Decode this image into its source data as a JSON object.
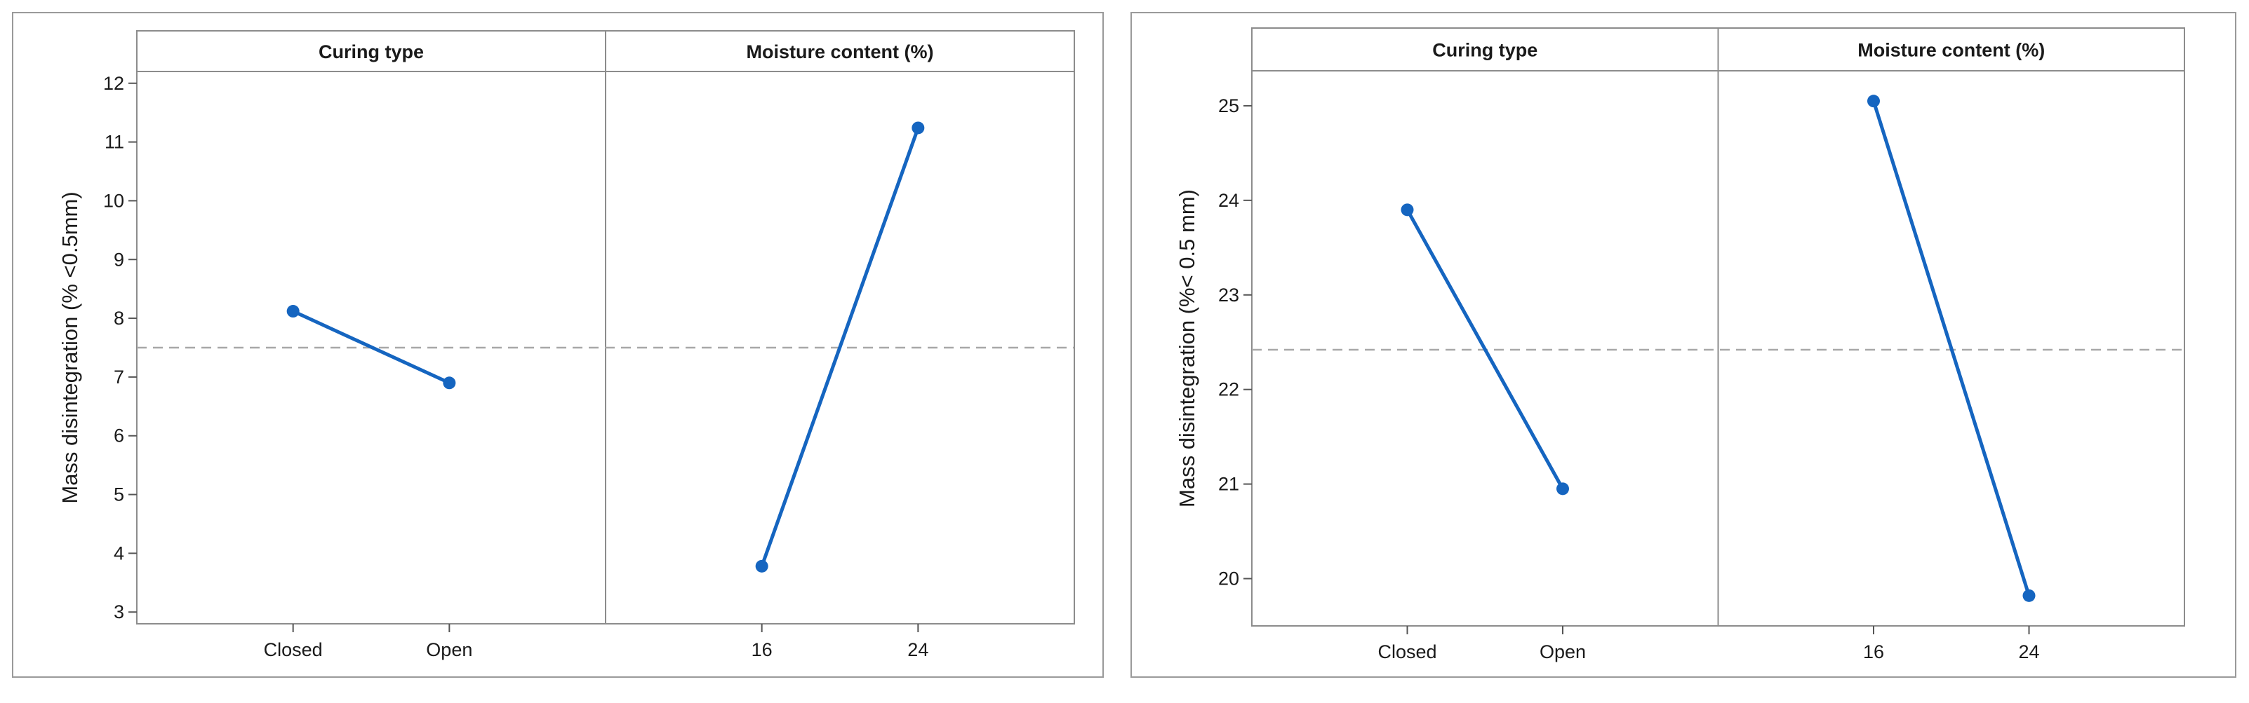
{
  "chart_data": [
    {
      "type": "line",
      "ylabel": "Mass disintegration (% <0.5mm)",
      "ylim": [
        2.8,
        12.2
      ],
      "yticks": [
        3,
        4,
        5,
        6,
        7,
        8,
        9,
        10,
        11,
        12
      ],
      "grand_mean": 7.5,
      "color": "#1565c0",
      "reference_line_color": "#a8a8a8",
      "panels": [
        {
          "title": "Curing type",
          "categories": [
            "Closed",
            "Open"
          ],
          "values": [
            8.12,
            6.9
          ]
        },
        {
          "title": "Moisture content (%)",
          "categories": [
            "16",
            "24"
          ],
          "values": [
            3.78,
            11.24
          ]
        }
      ]
    },
    {
      "type": "line",
      "ylabel": "Mass disintegration (%< 0.5 mm)",
      "ylim": [
        19.5,
        25.37
      ],
      "yticks": [
        20,
        21,
        22,
        23,
        24,
        25
      ],
      "grand_mean": 22.42,
      "color": "#1565c0",
      "reference_line_color": "#a8a8a8",
      "panels": [
        {
          "title": "Curing type",
          "categories": [
            "Closed",
            "Open"
          ],
          "values": [
            23.9,
            20.95
          ]
        },
        {
          "title": "Moisture content (%)",
          "categories": [
            "16",
            "24"
          ],
          "values": [
            25.05,
            19.82
          ]
        }
      ]
    }
  ]
}
